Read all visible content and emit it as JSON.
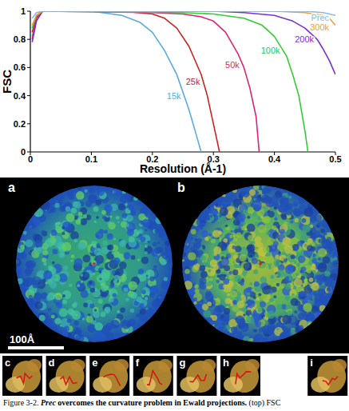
{
  "chart_data": {
    "type": "line",
    "x_label": "Resolution (Å-1)",
    "y_label": "FSC",
    "xlim": [
      0,
      0.5
    ],
    "ylim": [
      0,
      1
    ],
    "xticks": [
      0,
      0.1,
      0.2,
      0.3,
      0.4,
      0.5
    ],
    "yticks": [
      0,
      0.2,
      0.4,
      0.6,
      0.8,
      1
    ],
    "grid": false,
    "series": [
      {
        "name": "15k",
        "color": "#5aaae0",
        "x": [
          0.003,
          0.01,
          0.02,
          0.1,
          0.15,
          0.18,
          0.2,
          0.22,
          0.24,
          0.26,
          0.27,
          0.28
        ],
        "values": [
          0.82,
          0.95,
          1,
          1,
          0.97,
          0.92,
          0.85,
          0.72,
          0.55,
          0.3,
          0.15,
          0
        ]
      },
      {
        "name": "25k",
        "color": "#cc2222",
        "x": [
          0.003,
          0.01,
          0.02,
          0.15,
          0.2,
          0.22,
          0.24,
          0.26,
          0.28,
          0.29,
          0.3,
          0.31
        ],
        "values": [
          0.85,
          0.96,
          1,
          1,
          0.98,
          0.95,
          0.88,
          0.75,
          0.55,
          0.4,
          0.2,
          0
        ]
      },
      {
        "name": "50k",
        "color": "#dd2277",
        "x": [
          0.003,
          0.01,
          0.02,
          0.2,
          0.25,
          0.28,
          0.3,
          0.32,
          0.34,
          0.35,
          0.36,
          0.37,
          0.375
        ],
        "values": [
          0.8,
          0.95,
          1,
          0.99,
          0.98,
          0.96,
          0.93,
          0.85,
          0.7,
          0.6,
          0.45,
          0.25,
          0
        ]
      },
      {
        "name": "100k",
        "color": "#33cc33",
        "x": [
          0.003,
          0.01,
          0.02,
          0.25,
          0.3,
          0.35,
          0.38,
          0.4,
          0.42,
          0.43,
          0.44,
          0.45,
          0.455
        ],
        "values": [
          0.88,
          0.97,
          1,
          0.99,
          0.98,
          0.95,
          0.9,
          0.82,
          0.68,
          0.55,
          0.4,
          0.15,
          0
        ]
      },
      {
        "name": "200k",
        "color": "#7733cc",
        "x": [
          0.003,
          0.01,
          0.02,
          0.3,
          0.35,
          0.4,
          0.43,
          0.45,
          0.47,
          0.48,
          0.49,
          0.5
        ],
        "values": [
          0.78,
          0.93,
          1,
          1,
          0.99,
          0.97,
          0.93,
          0.88,
          0.8,
          0.73,
          0.65,
          0.55
        ]
      },
      {
        "name": "300k",
        "color": "#ee9944",
        "x": [
          0.003,
          0.01,
          0.02,
          0.35,
          0.4,
          0.45,
          0.48,
          0.49,
          0.5
        ],
        "values": [
          0.9,
          0.97,
          1,
          1,
          1,
          0.99,
          0.97,
          0.95,
          0.9
        ]
      },
      {
        "name": "Prec",
        "color": "#88bbdd",
        "x": [
          0.003,
          0.01,
          0.02,
          0.4,
          0.45,
          0.48,
          0.5
        ],
        "values": [
          0.95,
          0.99,
          1,
          1,
          1,
          0.99,
          0.97
        ]
      }
    ]
  },
  "figure": {
    "panels": [
      "a",
      "b"
    ],
    "scale_bar": "100Å",
    "strip": [
      "c",
      "d",
      "e",
      "f",
      "g",
      "h",
      "i"
    ]
  },
  "caption": {
    "label": "Figure 3-2.",
    "emphasis": "Prec",
    "title": "overcomes the curvature problem in Ewald projections.",
    "text": "(top) FSC"
  }
}
